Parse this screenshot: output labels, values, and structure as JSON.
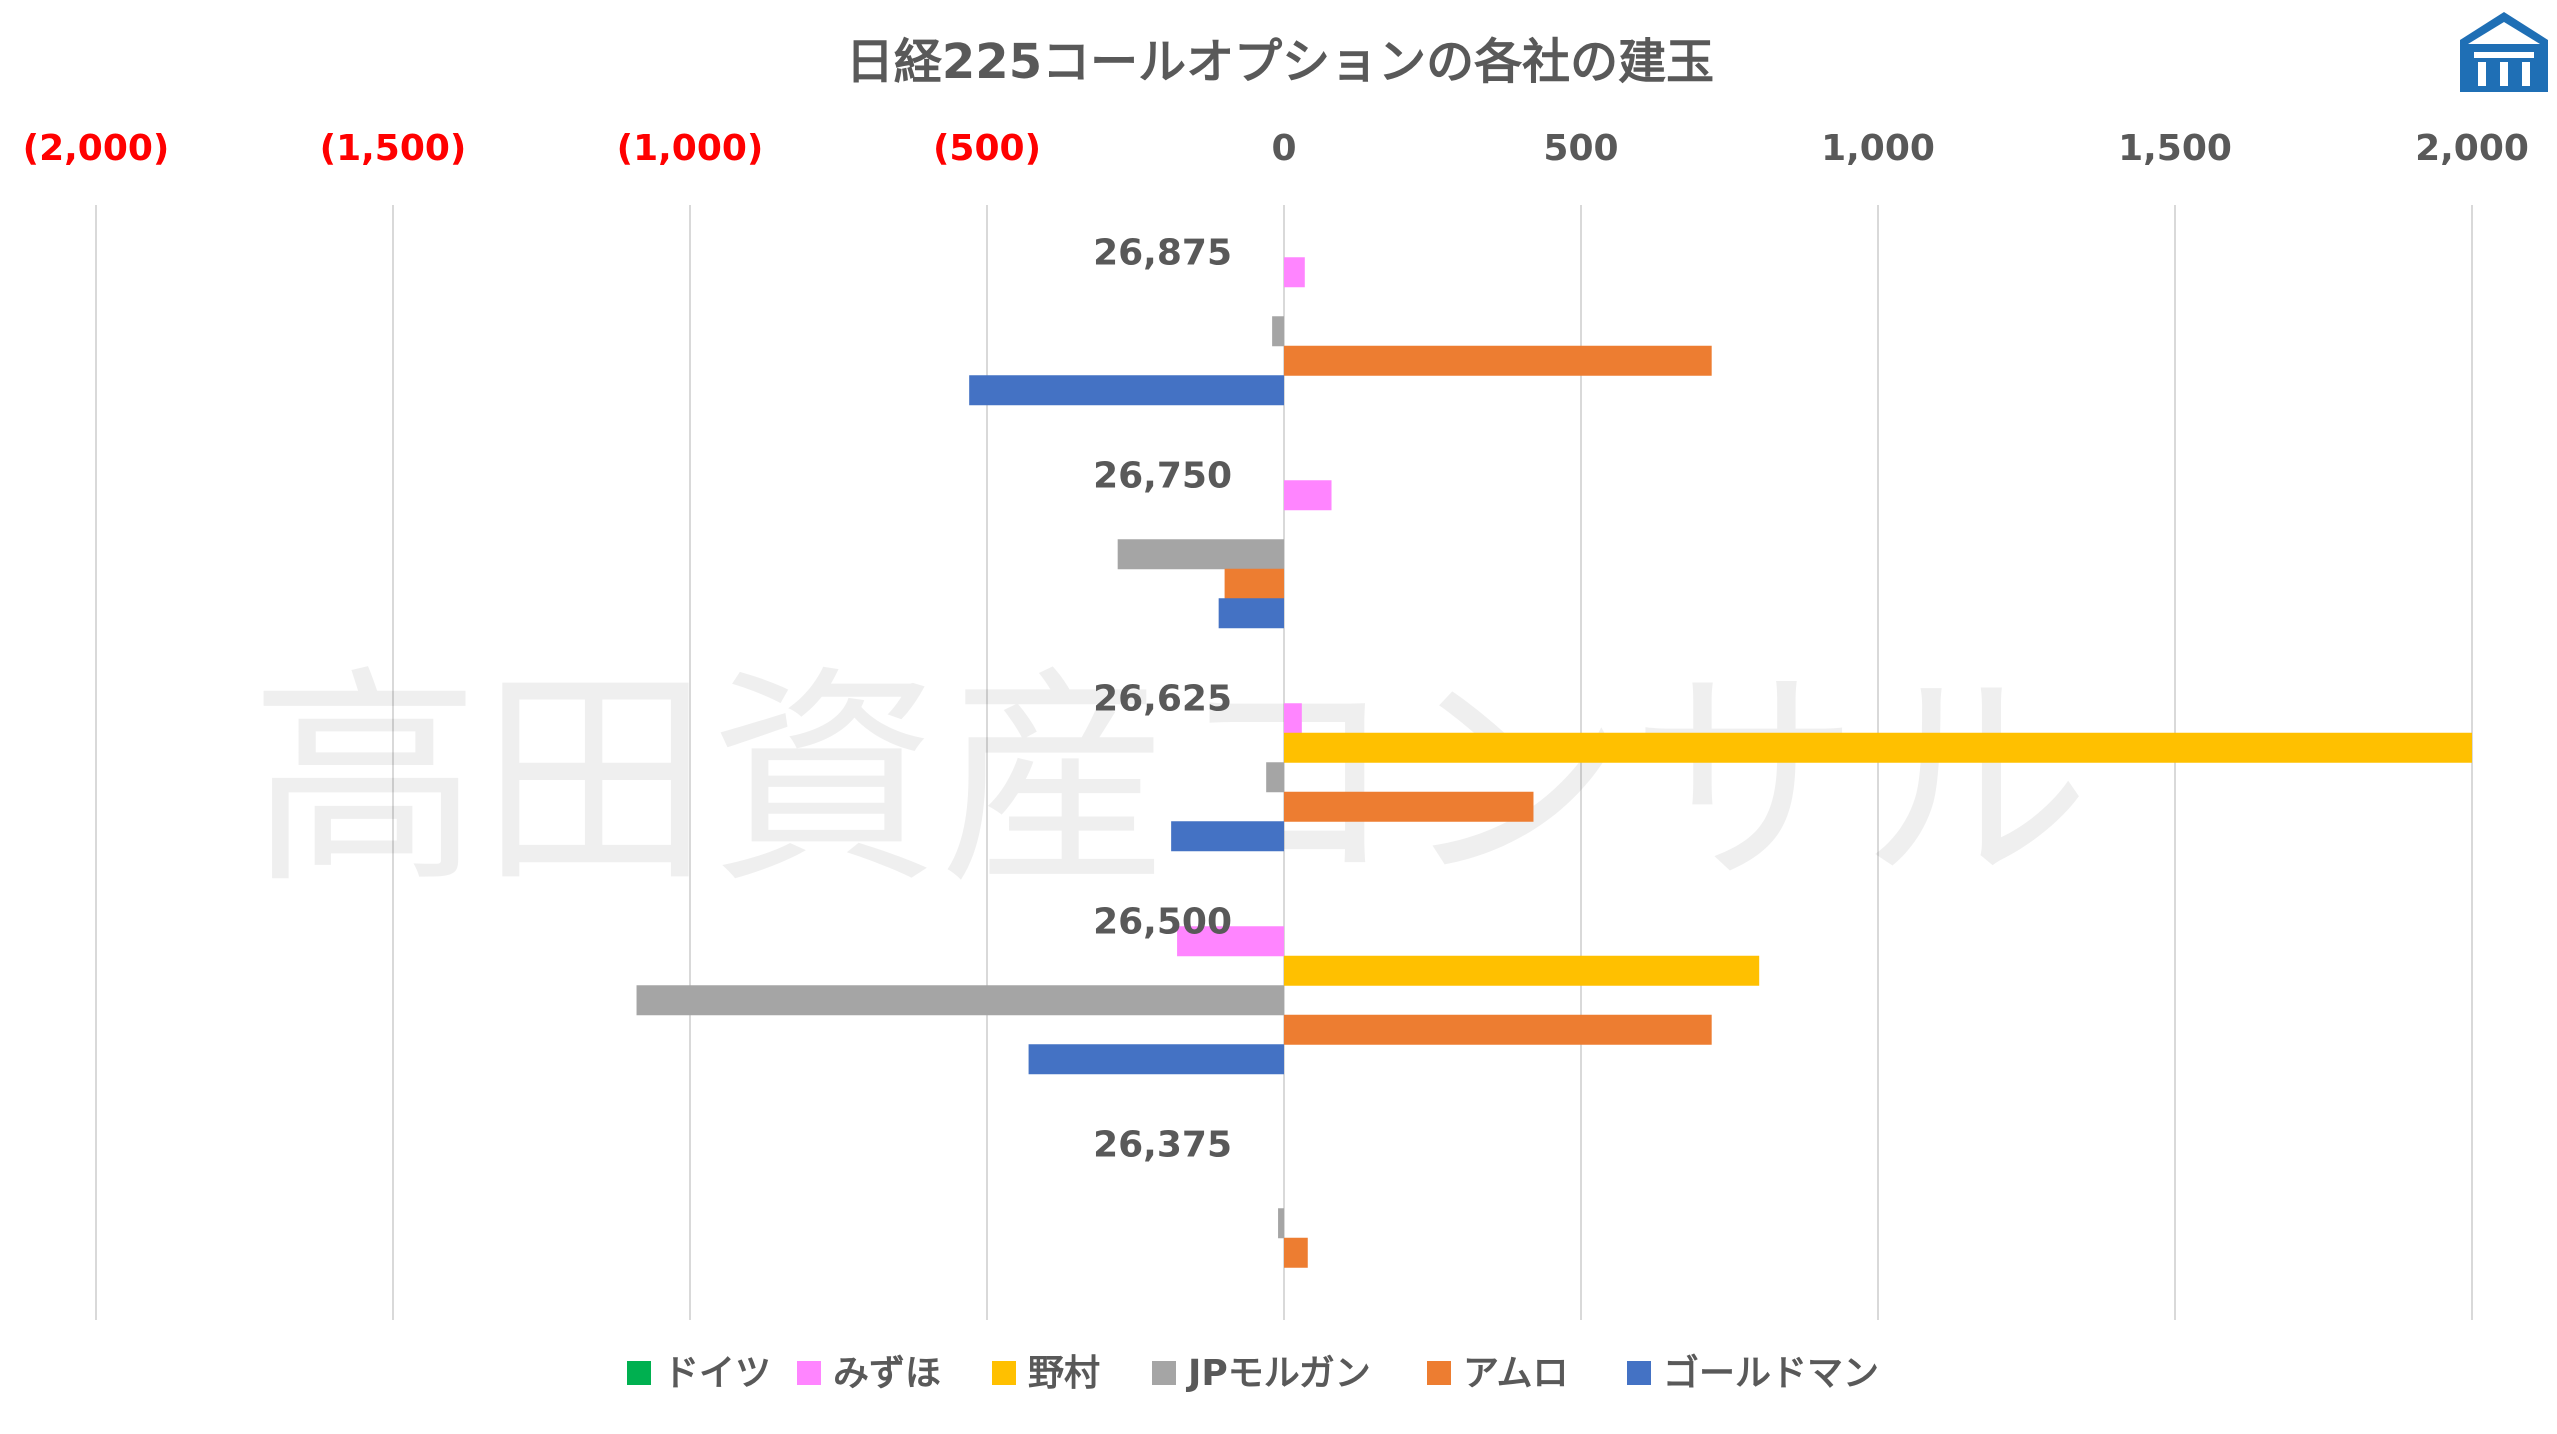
{
  "chart_data": {
    "type": "bar",
    "orientation": "horizontal",
    "title": "日経225コールオプションの各社の建玉",
    "xlim": [
      -2000,
      2000
    ],
    "x_ticks": [
      {
        "value": -2000,
        "label": "(2,000)"
      },
      {
        "value": -1500,
        "label": "(1,500)"
      },
      {
        "value": -1000,
        "label": "(1,000)"
      },
      {
        "value": -500,
        "label": "(500)"
      },
      {
        "value": 0,
        "label": "0"
      },
      {
        "value": 500,
        "label": "500"
      },
      {
        "value": 1000,
        "label": "1,000"
      },
      {
        "value": 1500,
        "label": "1,500"
      },
      {
        "value": 2000,
        "label": "2,000"
      }
    ],
    "x_axis_position": "top",
    "negative_tick_color": "#FF0000",
    "positive_tick_color": "#595959",
    "grid": true,
    "legend_position": "bottom",
    "categories": [
      "26,875",
      "26,750",
      "26,625",
      "26,500",
      "26,375"
    ],
    "series": [
      {
        "name": "ドイツ",
        "color": "#00B050",
        "values": [
          0,
          0,
          0,
          0,
          0
        ]
      },
      {
        "name": "みずほ",
        "color": "#FF85FF",
        "values": [
          35,
          80,
          30,
          -180,
          0
        ]
      },
      {
        "name": "野村",
        "color": "#FFC000",
        "values": [
          0,
          0,
          2000,
          800,
          0
        ]
      },
      {
        "name": "JPモルガン",
        "color": "#A5A5A5",
        "values": [
          -20,
          -280,
          -30,
          -1090,
          -10
        ]
      },
      {
        "name": "アムロ",
        "color": "#ED7D31",
        "values": [
          720,
          -100,
          420,
          720,
          40
        ]
      },
      {
        "name": "ゴールドマン",
        "color": "#4472C4",
        "values": [
          -530,
          -110,
          -190,
          -430,
          0
        ]
      }
    ]
  },
  "watermark": "高田資産コンサル",
  "logo": {
    "icon": "house-logo-icon",
    "color": "#1F6FB5"
  }
}
